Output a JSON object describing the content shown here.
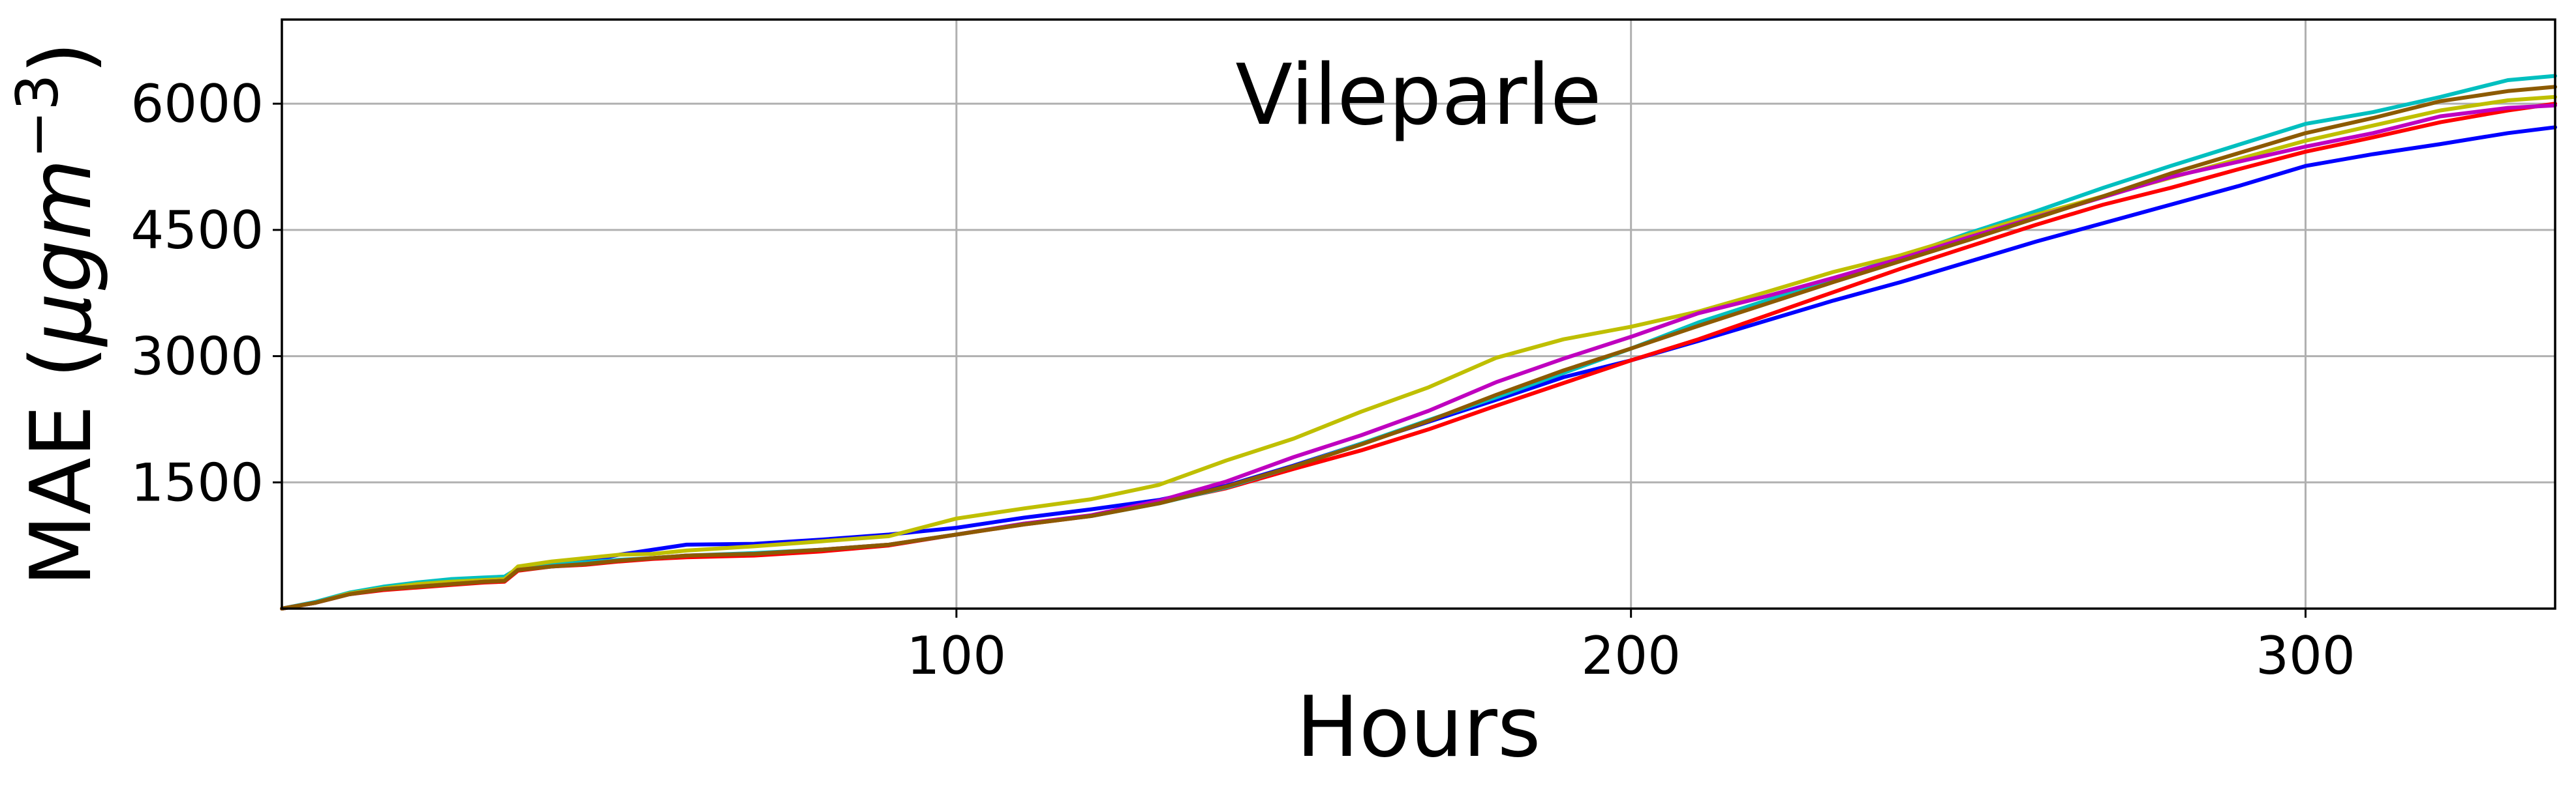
{
  "chart_data": {
    "type": "line",
    "title": "Vileparle",
    "xlabel": "Hours",
    "ylabel_prefix": "MAE (",
    "ylabel_mu": "μ",
    "ylabel_gm": "gm",
    "ylabel_exp": "−3",
    "ylabel_suffix": ")",
    "xlim": [
      0,
      337
    ],
    "ylim": [
      0,
      7000
    ],
    "grid": true,
    "legend": "none",
    "x_ticks": [
      100,
      200,
      300
    ],
    "x_tick_labels": [
      "100",
      "200",
      "300"
    ],
    "y_ticks": [
      1500,
      3000,
      4500,
      6000
    ],
    "y_tick_labels": [
      "1500",
      "3000",
      "4500",
      "6000"
    ],
    "x": [
      0,
      5,
      10,
      15,
      20,
      25,
      30,
      33,
      35,
      40,
      45,
      50,
      55,
      60,
      70,
      80,
      90,
      100,
      110,
      120,
      130,
      140,
      150,
      160,
      170,
      180,
      190,
      200,
      210,
      220,
      230,
      240,
      250,
      260,
      270,
      280,
      290,
      300,
      310,
      320,
      330,
      337
    ],
    "series": [
      {
        "color": "#0000ff",
        "values": [
          0,
          70,
          180,
          230,
          260,
          290,
          330,
          340,
          470,
          520,
          560,
          640,
          700,
          760,
          770,
          820,
          880,
          960,
          1080,
          1180,
          1290,
          1460,
          1700,
          1960,
          2220,
          2480,
          2750,
          2950,
          3180,
          3420,
          3660,
          3880,
          4120,
          4360,
          4580,
          4800,
          5020,
          5260,
          5400,
          5520,
          5650,
          5720
        ]
      },
      {
        "color": "#ff0000",
        "values": [
          0,
          70,
          170,
          220,
          250,
          280,
          310,
          320,
          450,
          500,
          520,
          560,
          590,
          610,
          630,
          680,
          750,
          880,
          1000,
          1100,
          1260,
          1430,
          1660,
          1880,
          2130,
          2410,
          2680,
          2950,
          3200,
          3480,
          3760,
          4040,
          4300,
          4560,
          4800,
          5000,
          5220,
          5430,
          5600,
          5780,
          5920,
          6000
        ]
      },
      {
        "color": "#00bfbf",
        "values": [
          0,
          80,
          190,
          260,
          310,
          350,
          370,
          380,
          480,
          520,
          550,
          580,
          600,
          630,
          660,
          700,
          760,
          880,
          1010,
          1100,
          1250,
          1440,
          1690,
          1960,
          2240,
          2510,
          2800,
          3090,
          3400,
          3660,
          3920,
          4180,
          4460,
          4720,
          5000,
          5260,
          5510,
          5760,
          5900,
          6080,
          6280,
          6330
        ]
      },
      {
        "color": "#bfbf00",
        "values": [
          0,
          70,
          180,
          240,
          290,
          320,
          340,
          350,
          500,
          560,
          600,
          640,
          650,
          690,
          740,
          800,
          860,
          1070,
          1190,
          1300,
          1470,
          1760,
          2020,
          2340,
          2630,
          2980,
          3200,
          3350,
          3530,
          3760,
          4000,
          4200,
          4440,
          4680,
          4900,
          5120,
          5340,
          5560,
          5740,
          5920,
          6040,
          6080
        ]
      },
      {
        "color": "#bf00bf",
        "values": [
          0,
          70,
          170,
          230,
          260,
          290,
          320,
          330,
          460,
          500,
          530,
          570,
          600,
          630,
          650,
          700,
          760,
          880,
          1010,
          1110,
          1280,
          1510,
          1800,
          2060,
          2350,
          2690,
          2970,
          3230,
          3510,
          3710,
          3930,
          4160,
          4410,
          4650,
          4890,
          5130,
          5310,
          5490,
          5650,
          5850,
          5950,
          5980
        ]
      },
      {
        "color": "#8c5a00",
        "values": [
          0,
          70,
          170,
          230,
          260,
          290,
          320,
          330,
          460,
          500,
          530,
          570,
          600,
          630,
          650,
          700,
          760,
          880,
          1000,
          1100,
          1250,
          1450,
          1690,
          1950,
          2230,
          2540,
          2830,
          3090,
          3360,
          3620,
          3880,
          4130,
          4380,
          4640,
          4900,
          5170,
          5410,
          5650,
          5830,
          6030,
          6150,
          6200
        ]
      }
    ]
  }
}
